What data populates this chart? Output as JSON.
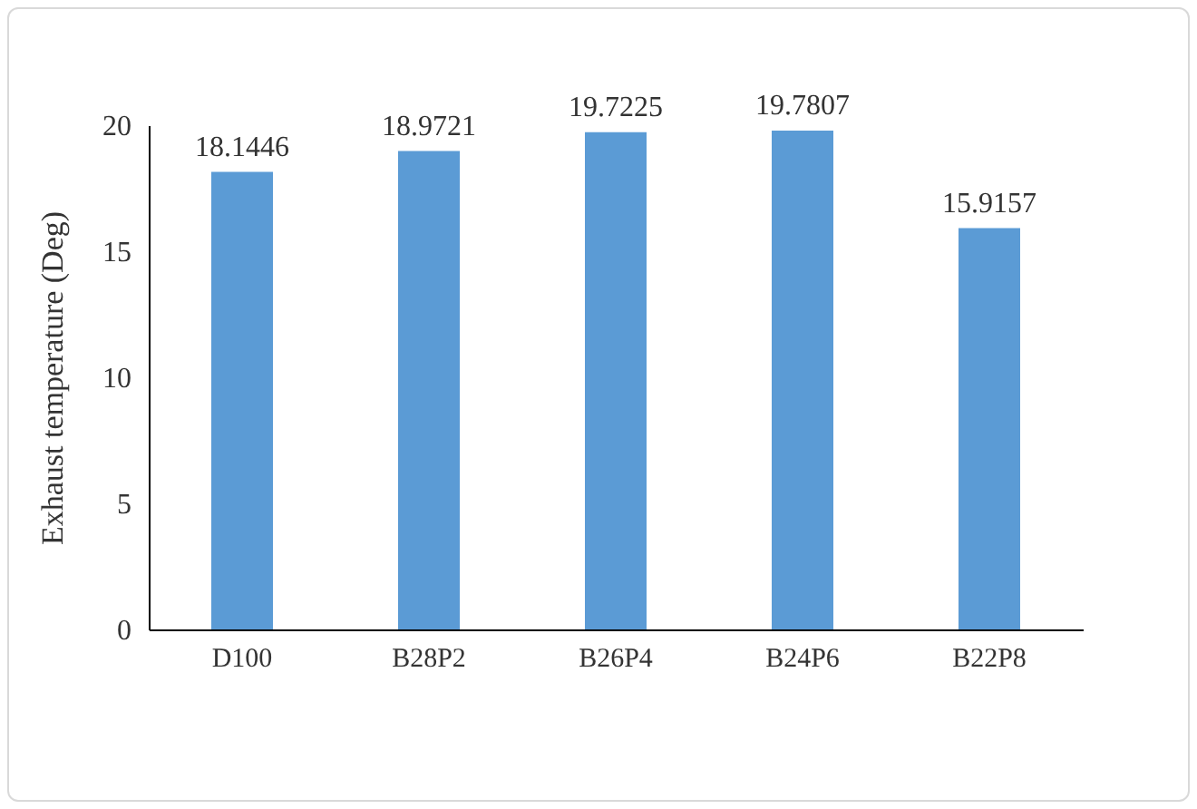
{
  "chart_data": {
    "type": "bar",
    "ylabel": "Exhaust temperature  (Deg)",
    "categories": [
      "D100",
      "B28P2",
      "B26P4",
      "B24P6",
      "B22P8"
    ],
    "values": [
      18.1446,
      18.9721,
      19.7225,
      19.7807,
      15.9157
    ],
    "color": "#5b9bd5",
    "ylim": [
      0,
      20
    ],
    "yticks": [
      0,
      5,
      10,
      15,
      20
    ],
    "grid": false,
    "data_labels": true
  }
}
